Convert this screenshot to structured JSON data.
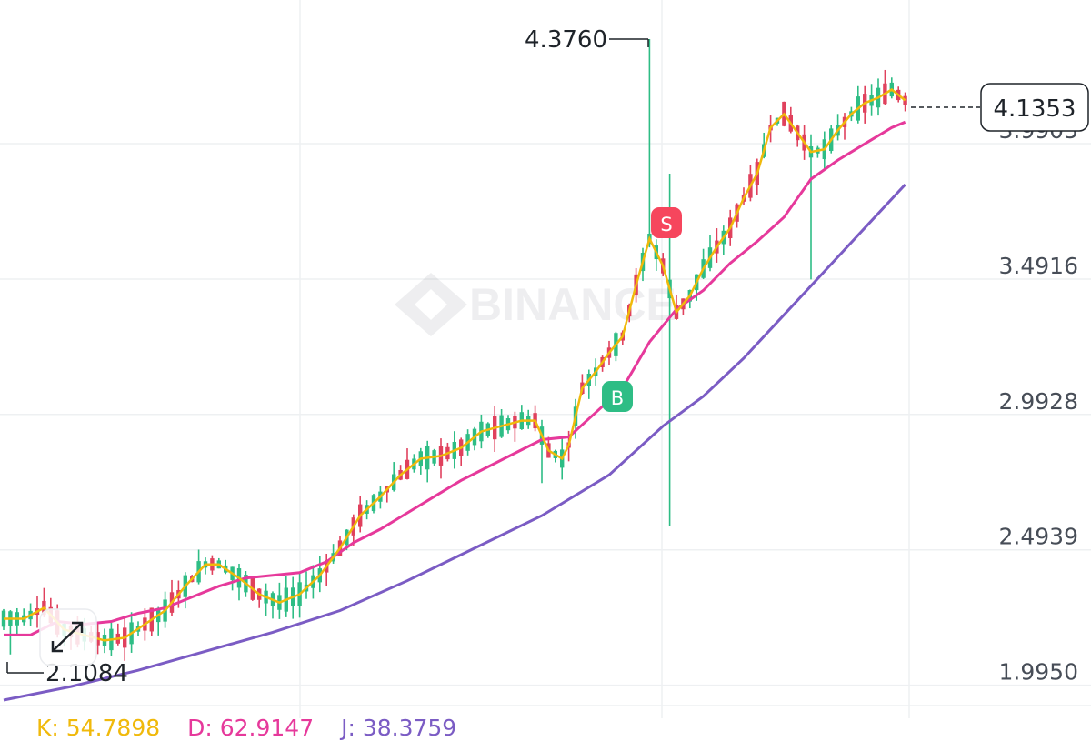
{
  "chart_data": {
    "type": "candlestick",
    "price_axis": {
      "ticks": [
        1.995,
        2.4939,
        2.9928,
        3.4916,
        3.9905
      ],
      "range": [
        1.92,
        4.52
      ]
    },
    "last_price": "4.1353",
    "high_label": "4.3760",
    "low_label": "2.1084",
    "watermark": "BINANCE",
    "signals": [
      {
        "label": "B",
        "candle": 88
      },
      {
        "label": "S",
        "candle": 95
      }
    ],
    "indicators": {
      "kdj": {
        "k": "K: 54.7898",
        "d": "D: 62.9147",
        "j": "J: 38.3759"
      }
    },
    "colors": {
      "up": "#2ebd85",
      "down": "#e0415d",
      "ma_short": "#f0b90b",
      "ma_mid": "#e6399b",
      "ma_long": "#7b5cc4"
    },
    "ma_short": [
      [
        0,
        2.24
      ],
      [
        3,
        2.24
      ],
      [
        6,
        2.28
      ],
      [
        9,
        2.2
      ],
      [
        12,
        2.18
      ],
      [
        15,
        2.16
      ],
      [
        18,
        2.17
      ],
      [
        21,
        2.22
      ],
      [
        24,
        2.27
      ],
      [
        27,
        2.36
      ],
      [
        30,
        2.44
      ],
      [
        32,
        2.44
      ],
      [
        35,
        2.39
      ],
      [
        38,
        2.33
      ],
      [
        41,
        2.3
      ],
      [
        44,
        2.33
      ],
      [
        47,
        2.4
      ],
      [
        50,
        2.5
      ],
      [
        53,
        2.62
      ],
      [
        56,
        2.69
      ],
      [
        59,
        2.77
      ],
      [
        62,
        2.83
      ],
      [
        65,
        2.84
      ],
      [
        68,
        2.87
      ],
      [
        71,
        2.93
      ],
      [
        74,
        2.95
      ],
      [
        77,
        2.97
      ],
      [
        79,
        2.97
      ],
      [
        81,
        2.86
      ],
      [
        83,
        2.83
      ],
      [
        84,
        2.88
      ],
      [
        86,
        3.09
      ],
      [
        88,
        3.15
      ],
      [
        90,
        3.22
      ],
      [
        92,
        3.28
      ],
      [
        94,
        3.47
      ],
      [
        96,
        3.64
      ],
      [
        98,
        3.54
      ],
      [
        100,
        3.37
      ],
      [
        102,
        3.43
      ],
      [
        104,
        3.53
      ],
      [
        106,
        3.61
      ],
      [
        108,
        3.68
      ],
      [
        110,
        3.79
      ],
      [
        112,
        3.88
      ],
      [
        114,
        4.05
      ],
      [
        116,
        4.1
      ],
      [
        118,
        4.03
      ],
      [
        120,
        3.96
      ],
      [
        122,
        3.97
      ],
      [
        124,
        4.04
      ],
      [
        126,
        4.1
      ],
      [
        128,
        4.14
      ],
      [
        130,
        4.16
      ],
      [
        132,
        4.19
      ],
      [
        134,
        4.15
      ]
    ],
    "ma_mid": [
      [
        0,
        2.18
      ],
      [
        4,
        2.18
      ],
      [
        8,
        2.23
      ],
      [
        12,
        2.22
      ],
      [
        16,
        2.23
      ],
      [
        20,
        2.26
      ],
      [
        24,
        2.28
      ],
      [
        28,
        2.32
      ],
      [
        32,
        2.36
      ],
      [
        36,
        2.39
      ],
      [
        40,
        2.4
      ],
      [
        44,
        2.41
      ],
      [
        48,
        2.45
      ],
      [
        52,
        2.52
      ],
      [
        56,
        2.57
      ],
      [
        60,
        2.63
      ],
      [
        64,
        2.69
      ],
      [
        68,
        2.75
      ],
      [
        72,
        2.8
      ],
      [
        76,
        2.85
      ],
      [
        80,
        2.9
      ],
      [
        84,
        2.91
      ],
      [
        88,
        3.0
      ],
      [
        92,
        3.09
      ],
      [
        96,
        3.26
      ],
      [
        100,
        3.38
      ],
      [
        104,
        3.45
      ],
      [
        108,
        3.55
      ],
      [
        112,
        3.63
      ],
      [
        116,
        3.72
      ],
      [
        120,
        3.86
      ],
      [
        124,
        3.93
      ],
      [
        128,
        3.99
      ],
      [
        132,
        4.05
      ],
      [
        134,
        4.07
      ]
    ],
    "ma_long": [
      [
        0,
        1.94
      ],
      [
        10,
        1.99
      ],
      [
        20,
        2.05
      ],
      [
        30,
        2.12
      ],
      [
        40,
        2.19
      ],
      [
        50,
        2.27
      ],
      [
        60,
        2.38
      ],
      [
        70,
        2.5
      ],
      [
        80,
        2.62
      ],
      [
        90,
        2.77
      ],
      [
        98,
        2.95
      ],
      [
        104,
        3.06
      ],
      [
        110,
        3.2
      ],
      [
        116,
        3.36
      ],
      [
        122,
        3.52
      ],
      [
        128,
        3.68
      ],
      [
        134,
        3.84
      ]
    ]
  }
}
